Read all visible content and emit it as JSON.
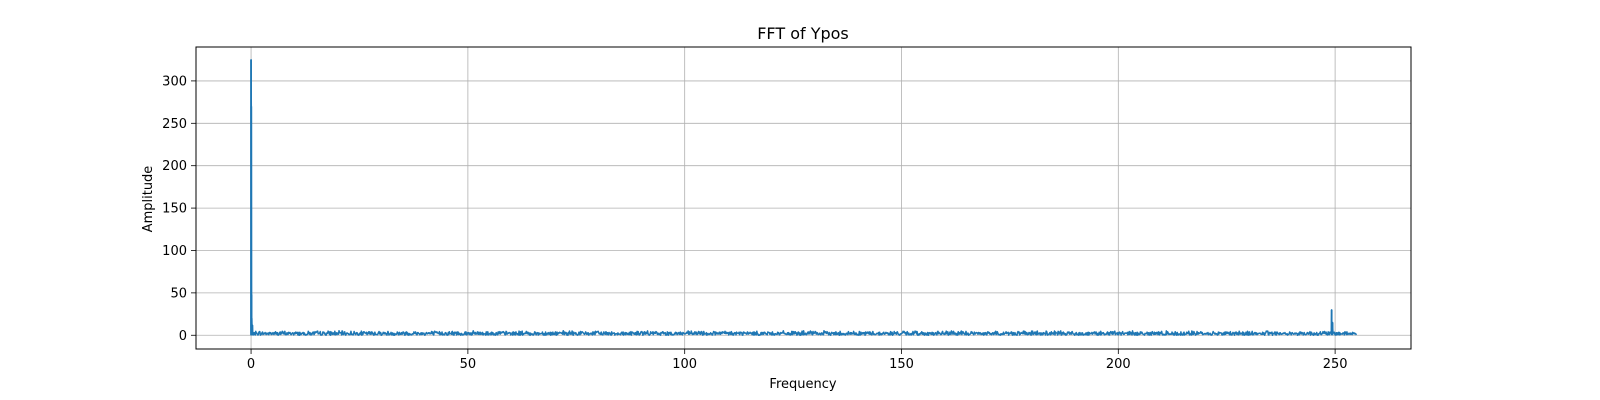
{
  "chart_data": {
    "type": "line",
    "title": "FFT of Ypos",
    "xlabel": "Frequency",
    "ylabel": "Amplitude",
    "xlim": [
      -12.7,
      267.5
    ],
    "ylim": [
      -16.2,
      340
    ],
    "xticks": [
      0,
      50,
      100,
      150,
      200,
      250
    ],
    "yticks": [
      0,
      50,
      100,
      150,
      200,
      250,
      300
    ],
    "grid": true,
    "series": [
      {
        "color": "#1f77b4",
        "x_range": [
          0,
          255
        ],
        "baseline_max": 5,
        "peaks": [
          {
            "x": 0.0,
            "y": 325
          },
          {
            "x": 0.05,
            "y": 270
          },
          {
            "x": 0.1,
            "y": 48
          },
          {
            "x": 0.15,
            "y": 20
          },
          {
            "x": 0.3,
            "y": 12
          },
          {
            "x": 249.2,
            "y": 30
          },
          {
            "x": 249.4,
            "y": 15
          }
        ]
      }
    ]
  }
}
